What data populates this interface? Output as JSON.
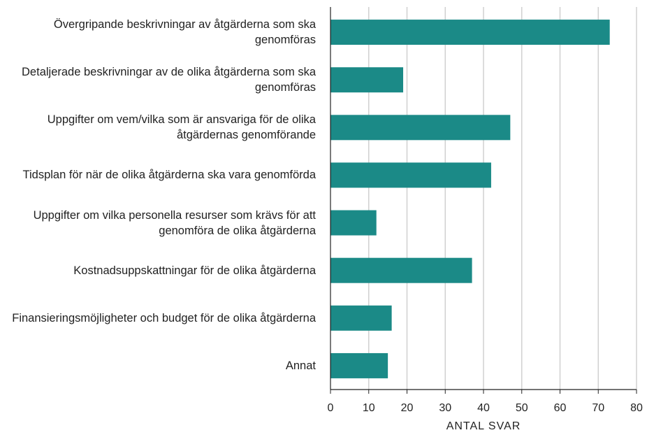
{
  "chart_data": {
    "type": "barh",
    "categories": [
      "Övergripande beskrivningar av åtgärderna som ska genomföras",
      "Detaljerade beskrivningar av de olika åtgärderna som ska genomföras",
      "Uppgifter om vem/vilka som är ansvariga för de olika åtgärdernas genomförande",
      "Tidsplan för när de olika åtgärderna ska vara genomförda",
      "Uppgifter om vilka personella resurser som krävs för att genomföra de olika åtgärderna",
      "Kostnadsuppskattningar för de olika åtgärderna",
      "Finansieringsmöjligheter och budget för de olika åtgärderna",
      "Annat"
    ],
    "values": [
      73,
      19,
      47,
      42,
      12,
      37,
      16,
      15
    ],
    "color": "#1b8a87",
    "xlabel": "ANTAL SVAR",
    "xlim": [
      0,
      80
    ],
    "xticks": [
      0,
      10,
      20,
      30,
      40,
      50,
      60,
      70,
      80
    ],
    "grid": true
  }
}
